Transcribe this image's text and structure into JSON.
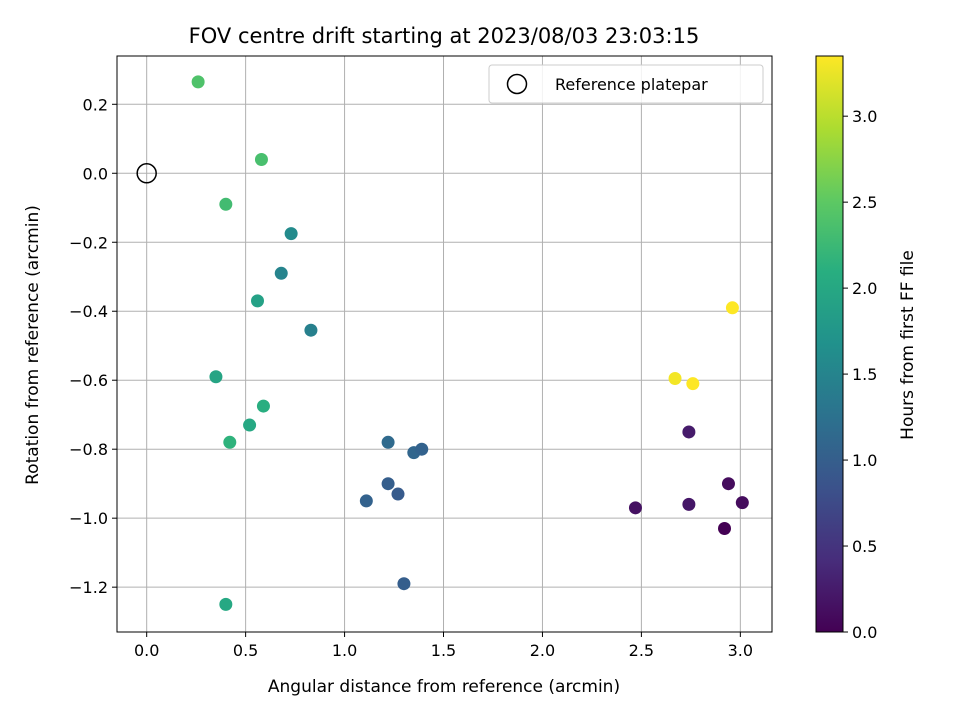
{
  "chart_data": {
    "type": "scatter",
    "title": "FOV centre drift starting at 2023/08/03 23:03:15",
    "xlabel": "Angular distance from reference (arcmin)",
    "ylabel": "Rotation from reference (arcmin)",
    "xlim": [
      -0.15,
      3.16
    ],
    "ylim": [
      -1.33,
      0.34
    ],
    "xticks": [
      0.0,
      0.5,
      1.0,
      1.5,
      2.0,
      2.5,
      3.0
    ],
    "xtick_labels": [
      "0.0",
      "0.5",
      "1.0",
      "1.5",
      "2.0",
      "2.5",
      "3.0"
    ],
    "yticks": [
      0.2,
      0.0,
      -0.2,
      -0.4,
      -0.6,
      -0.8,
      -1.0,
      -1.2
    ],
    "ytick_labels": [
      "0.2",
      "0.0",
      "−0.2",
      "−0.4",
      "−0.6",
      "−0.8",
      "−1.0",
      "−1.2"
    ],
    "grid": true,
    "legend": {
      "placement": "top-right",
      "label": "Reference platepar"
    },
    "reference_point": {
      "x": 0.0,
      "y": 0.0
    },
    "colorbar": {
      "label": "Hours from first FF file",
      "range": [
        0.0,
        3.35
      ],
      "ticks": [
        0.0,
        0.5,
        1.0,
        1.5,
        2.0,
        2.5,
        3.0
      ],
      "tick_labels": [
        "0.0",
        "0.5",
        "1.0",
        "1.5",
        "2.0",
        "2.5",
        "3.0"
      ],
      "colormap": "viridis"
    },
    "points": [
      {
        "x": 2.92,
        "y": -1.03,
        "t": 0.0
      },
      {
        "x": 2.47,
        "y": -0.97,
        "t": 0.15
      },
      {
        "x": 2.94,
        "y": -0.9,
        "t": 0.1
      },
      {
        "x": 3.01,
        "y": -0.955,
        "t": 0.1
      },
      {
        "x": 2.74,
        "y": -0.96,
        "t": 0.2
      },
      {
        "x": 2.74,
        "y": -0.75,
        "t": 0.25
      },
      {
        "x": 1.3,
        "y": -1.19,
        "t": 1.0
      },
      {
        "x": 1.11,
        "y": -0.95,
        "t": 1.05
      },
      {
        "x": 1.27,
        "y": -0.93,
        "t": 0.95
      },
      {
        "x": 1.22,
        "y": -0.9,
        "t": 1.0
      },
      {
        "x": 1.35,
        "y": -0.81,
        "t": 1.1
      },
      {
        "x": 1.39,
        "y": -0.8,
        "t": 1.05
      },
      {
        "x": 1.22,
        "y": -0.78,
        "t": 1.15
      },
      {
        "x": 0.83,
        "y": -0.455,
        "t": 1.45
      },
      {
        "x": 0.68,
        "y": -0.29,
        "t": 1.5
      },
      {
        "x": 0.73,
        "y": -0.175,
        "t": 1.6
      },
      {
        "x": 0.56,
        "y": -0.37,
        "t": 1.9
      },
      {
        "x": 0.35,
        "y": -0.59,
        "t": 1.95
      },
      {
        "x": 0.52,
        "y": -0.73,
        "t": 2.0
      },
      {
        "x": 0.59,
        "y": -0.675,
        "t": 2.1
      },
      {
        "x": 0.42,
        "y": -0.78,
        "t": 2.15
      },
      {
        "x": 0.4,
        "y": -1.25,
        "t": 2.0
      },
      {
        "x": 0.4,
        "y": -0.09,
        "t": 2.3
      },
      {
        "x": 0.58,
        "y": 0.04,
        "t": 2.35
      },
      {
        "x": 0.26,
        "y": 0.265,
        "t": 2.4
      },
      {
        "x": 2.96,
        "y": -0.39,
        "t": 3.35
      },
      {
        "x": 2.67,
        "y": -0.595,
        "t": 3.3
      },
      {
        "x": 2.76,
        "y": -0.61,
        "t": 3.35
      }
    ]
  }
}
